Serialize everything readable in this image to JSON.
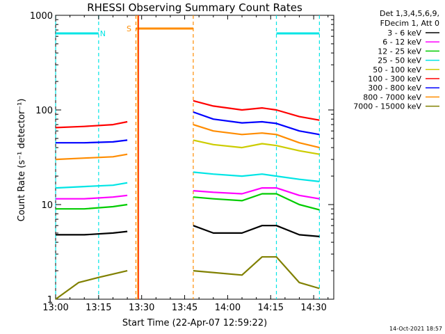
{
  "chart_data": {
    "type": "line",
    "title": "RHESSI Observing Summary Count Rates",
    "xlabel": "Start Time (22-Apr-07 12:59:22)",
    "ylabel": "Count Rate (s⁻¹ detector⁻¹)",
    "yscale": "log",
    "ylim": [
      1,
      1000
    ],
    "xlim": [
      "13:00",
      "14:37"
    ],
    "x_ticks": [
      "13:00",
      "13:15",
      "13:30",
      "13:45",
      "14:00",
      "14:15",
      "14:30"
    ],
    "y_ticks": [
      "1",
      "10",
      "100",
      "1000"
    ],
    "legend_header": [
      "Det 1,3,4,5,6,9,",
      "FDecim 1, Att 0"
    ],
    "legend_position": "outside-top-right",
    "footer": "14-Oct-2021 18:57",
    "flags": [
      {
        "label": "N",
        "color": "#00e5e5",
        "start": "13:00",
        "end": "13:15",
        "kind": "night"
      },
      {
        "label": "S",
        "color": "#ff8c00",
        "start": "13:28",
        "end": "13:48",
        "kind": "saa"
      },
      {
        "label": "",
        "color": "#00e5e5",
        "start": "14:17",
        "end": "14:32",
        "kind": "night"
      }
    ],
    "data_gap": [
      "13:27",
      "13:48"
    ],
    "series": [
      {
        "name": "3 - 6 keV",
        "color": "#000000",
        "points": [
          [
            "13:00",
            4.8
          ],
          [
            "13:10",
            4.8
          ],
          [
            "13:20",
            5.0
          ],
          [
            "13:25",
            5.2
          ],
          [
            "13:48",
            6.0
          ],
          [
            "13:55",
            5.0
          ],
          [
            "14:05",
            5.0
          ],
          [
            "14:12",
            6.0
          ],
          [
            "14:17",
            6.0
          ],
          [
            "14:25",
            4.8
          ],
          [
            "14:32",
            4.6
          ]
        ]
      },
      {
        "name": "6 - 12 keV",
        "color": "#ff00ff",
        "points": [
          [
            "13:00",
            11.5
          ],
          [
            "13:10",
            11.5
          ],
          [
            "13:20",
            12.0
          ],
          [
            "13:25",
            12.5
          ],
          [
            "13:48",
            14.0
          ],
          [
            "13:55",
            13.5
          ],
          [
            "14:05",
            13.0
          ],
          [
            "14:12",
            15.0
          ],
          [
            "14:17",
            15.0
          ],
          [
            "14:25",
            12.5
          ],
          [
            "14:32",
            11.5
          ]
        ]
      },
      {
        "name": "12 - 25 keV",
        "color": "#00cc00",
        "points": [
          [
            "13:00",
            9.0
          ],
          [
            "13:10",
            9.0
          ],
          [
            "13:20",
            9.5
          ],
          [
            "13:25",
            10.0
          ],
          [
            "13:48",
            12.0
          ],
          [
            "13:55",
            11.5
          ],
          [
            "14:05",
            11.0
          ],
          [
            "14:12",
            13.0
          ],
          [
            "14:17",
            13.0
          ],
          [
            "14:25",
            10.0
          ],
          [
            "14:32",
            8.8
          ]
        ]
      },
      {
        "name": "25 - 50 keV",
        "color": "#00e5e5",
        "points": [
          [
            "13:00",
            15.0
          ],
          [
            "13:10",
            15.5
          ],
          [
            "13:20",
            16.0
          ],
          [
            "13:25",
            17.0
          ],
          [
            "13:48",
            22.0
          ],
          [
            "13:55",
            21.0
          ],
          [
            "14:05",
            20.0
          ],
          [
            "14:12",
            21.0
          ],
          [
            "14:17",
            20.0
          ],
          [
            "14:25",
            18.5
          ],
          [
            "14:32",
            17.5
          ]
        ]
      },
      {
        "name": "50 - 100 keV",
        "color": "#cccc00",
        "points": [
          [
            "13:48",
            48.0
          ],
          [
            "13:55",
            43.0
          ],
          [
            "14:05",
            40.0
          ],
          [
            "14:12",
            44.0
          ],
          [
            "14:17",
            42.0
          ],
          [
            "14:25",
            37.0
          ],
          [
            "14:32",
            34.0
          ]
        ]
      },
      {
        "name": "100 - 300 keV",
        "color": "#ff0000",
        "points": [
          [
            "13:00",
            65.0
          ],
          [
            "13:10",
            67.0
          ],
          [
            "13:20",
            70.0
          ],
          [
            "13:25",
            75.0
          ],
          [
            "13:48",
            125.0
          ],
          [
            "13:55",
            110.0
          ],
          [
            "14:05",
            100.0
          ],
          [
            "14:12",
            105.0
          ],
          [
            "14:17",
            100.0
          ],
          [
            "14:25",
            85.0
          ],
          [
            "14:32",
            78.0
          ]
        ]
      },
      {
        "name": "300 - 800 keV",
        "color": "#0000ff",
        "points": [
          [
            "13:00",
            45.0
          ],
          [
            "13:10",
            45.0
          ],
          [
            "13:20",
            46.0
          ],
          [
            "13:25",
            48.0
          ],
          [
            "13:48",
            95.0
          ],
          [
            "13:55",
            80.0
          ],
          [
            "14:05",
            73.0
          ],
          [
            "14:12",
            75.0
          ],
          [
            "14:17",
            72.0
          ],
          [
            "14:25",
            60.0
          ],
          [
            "14:32",
            55.0
          ]
        ]
      },
      {
        "name": "800 - 7000 keV",
        "color": "#ff8c00",
        "points": [
          [
            "13:00",
            30.0
          ],
          [
            "13:10",
            31.0
          ],
          [
            "13:20",
            32.0
          ],
          [
            "13:25",
            34.0
          ],
          [
            "13:48",
            70.0
          ],
          [
            "13:55",
            60.0
          ],
          [
            "14:05",
            55.0
          ],
          [
            "14:12",
            57.0
          ],
          [
            "14:17",
            55.0
          ],
          [
            "14:25",
            45.0
          ],
          [
            "14:32",
            40.0
          ]
        ]
      },
      {
        "name": "7000 - 15000 keV",
        "color": "#808000",
        "points": [
          [
            "13:00",
            1.0
          ],
          [
            "13:08",
            1.5
          ],
          [
            "13:15",
            1.7
          ],
          [
            "13:25",
            2.0
          ],
          [
            "13:48",
            2.0
          ],
          [
            "14:05",
            1.8
          ],
          [
            "14:12",
            2.8
          ],
          [
            "14:17",
            2.8
          ],
          [
            "14:25",
            1.5
          ],
          [
            "14:32",
            1.3
          ]
        ]
      }
    ]
  }
}
